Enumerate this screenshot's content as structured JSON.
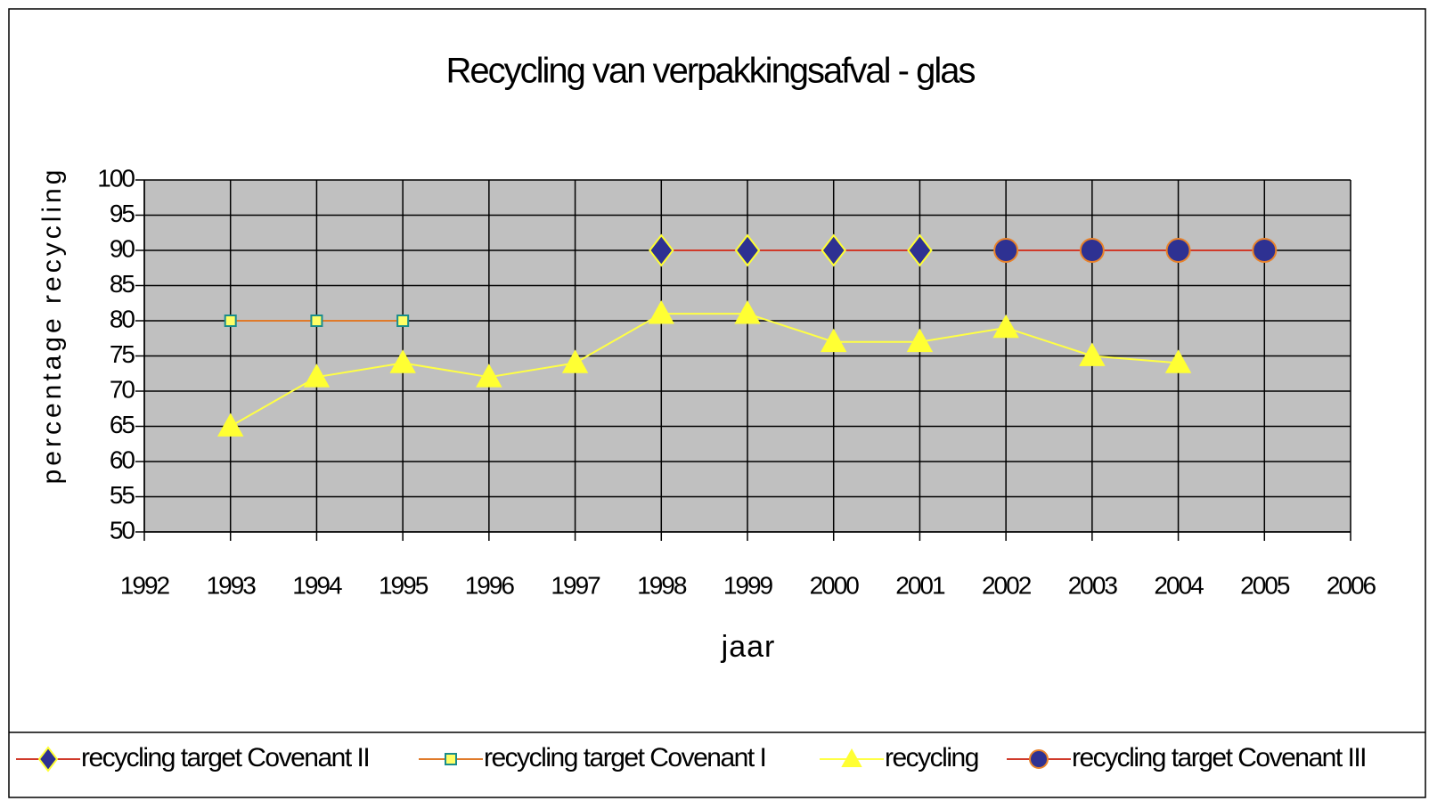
{
  "chart_data": {
    "type": "line",
    "title": "Recycling van verpakkingsafval  - glas",
    "x_label": "jaar",
    "y_label": "percentage recycling",
    "x": [
      1993,
      1994,
      1995,
      1996,
      1997,
      1998,
      1999,
      2000,
      2001,
      2002,
      2003,
      2004,
      2005
    ],
    "xlim": [
      1992,
      2006
    ],
    "xticks": [
      1992,
      1993,
      1994,
      1995,
      1996,
      1997,
      1998,
      1999,
      2000,
      2001,
      2002,
      2003,
      2004,
      2005,
      2006
    ],
    "ylim": [
      50,
      100
    ],
    "yticks": [
      50,
      55,
      60,
      65,
      70,
      75,
      80,
      85,
      90,
      95,
      100
    ],
    "grid": true,
    "legend": "bottom",
    "series": [
      {
        "name": "recycling target Covenant II",
        "color": "#d03a2a",
        "marker": "diamond",
        "marker_fill": "#2e3192",
        "marker_stroke": "#ffff33",
        "values": [
          null,
          null,
          null,
          null,
          null,
          90,
          90,
          90,
          90,
          null,
          null,
          null,
          null
        ]
      },
      {
        "name": "recycling target Covenant I",
        "color": "#e07a2a",
        "marker": "square",
        "marker_fill": "#ffff66",
        "marker_stroke": "#1a8c8c",
        "values": [
          80,
          80,
          80,
          null,
          null,
          null,
          null,
          null,
          null,
          null,
          null,
          null,
          null
        ]
      },
      {
        "name": "recycling",
        "color": "#ffff44",
        "marker": "triangle",
        "marker_fill": "#ffff33",
        "marker_stroke": "#ffff33",
        "values": [
          65,
          72,
          74,
          72,
          74,
          81,
          81,
          77,
          77,
          79,
          75,
          74,
          null
        ]
      },
      {
        "name": "recycling target Covenant III",
        "color": "#d03a2a",
        "marker": "circle",
        "marker_fill": "#2e3192",
        "marker_stroke": "#e8822a",
        "values": [
          null,
          null,
          null,
          null,
          null,
          null,
          null,
          null,
          null,
          90,
          90,
          90,
          90
        ]
      }
    ]
  }
}
